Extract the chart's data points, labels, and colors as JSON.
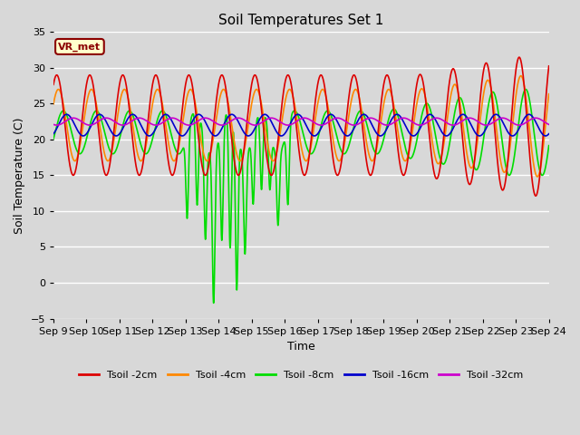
{
  "title": "Soil Temperatures Set 1",
  "xlabel": "Time",
  "ylabel": "Soil Temperature (C)",
  "ylim": [
    -5,
    35
  ],
  "xlim": [
    0,
    15
  ],
  "x_tick_labels": [
    "Sep 9",
    "Sep 10",
    "Sep 11",
    "Sep 12",
    "Sep 13",
    "Sep 14",
    "Sep 15",
    "Sep 16",
    "Sep 17",
    "Sep 18",
    "Sep 19",
    "Sep 20",
    "Sep 21",
    "Sep 22",
    "Sep 23",
    "Sep 24"
  ],
  "annotation": "VR_met",
  "background_color": "#d8d8d8",
  "plot_bg_color": "#d8d8d8",
  "series_colors": [
    "#dd0000",
    "#ff8800",
    "#00dd00",
    "#0000cc",
    "#cc00cc"
  ],
  "legend_labels": [
    "Tsoil -2cm",
    "Tsoil -4cm",
    "Tsoil -8cm",
    "Tsoil -16cm",
    "Tsoil -32cm"
  ]
}
